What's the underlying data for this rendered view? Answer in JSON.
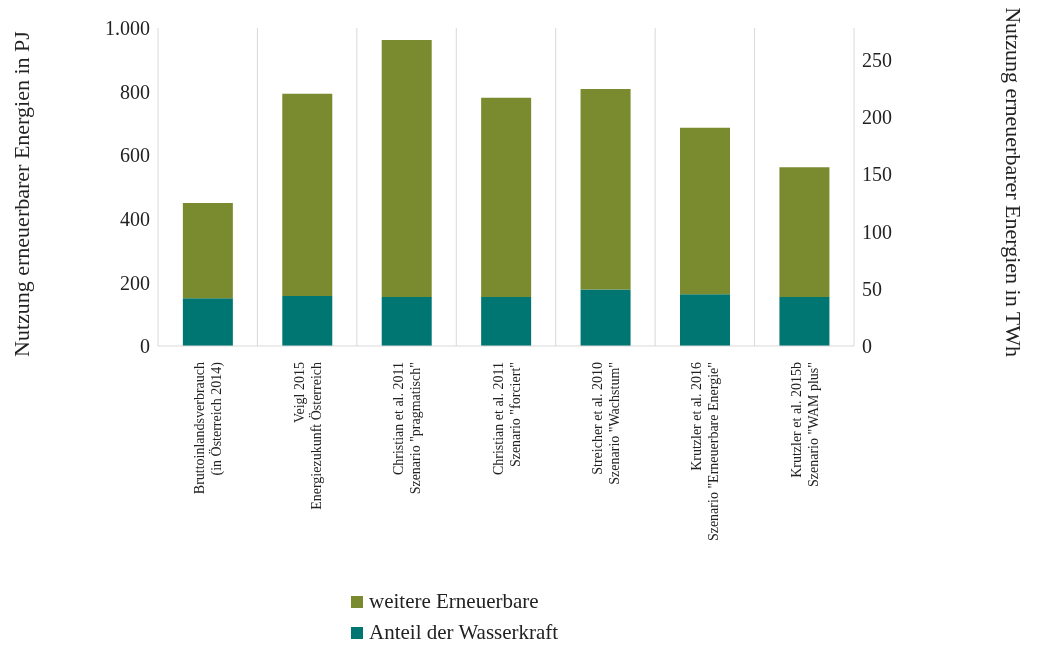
{
  "chart_data": {
    "type": "bar",
    "stacked": true,
    "categories": [
      "Bruttoinlandsverbrauch\n(in Österreich 2014)",
      "Veigl 2015\nEnergiezukunft Österreich",
      "Christian et al. 2011\nSzenario \"pragmatisch\"",
      "Christian et al. 2011\nSzenario \"forciert\"",
      "Streicher et al. 2010\nSzenario \"Wachstum\"",
      "Krutzler et al. 2016\nSzenario \"Erneuerbare Energie\"",
      "Krutzler et al. 2015b\nSzenario \"WAM plus\""
    ],
    "series": [
      {
        "name": "Anteil der Wasserkraft",
        "color": "#007672",
        "values": [
          150,
          157,
          154,
          154,
          178,
          163,
          154
        ]
      },
      {
        "name": "weitere Erneuerbare",
        "color": "#7a8a2e",
        "values": [
          300,
          636,
          808,
          627,
          630,
          523,
          408
        ]
      }
    ],
    "ylabel": "Nutzung erneuerbarer Energien in PJ",
    "y2label": "Nutzung erneuerbarer Energien in TWh",
    "ylim": [
      0,
      1000
    ],
    "yticks": [
      0,
      200,
      400,
      600,
      800,
      {
        "value": 1000,
        "label": "1.000"
      }
    ],
    "y2lim": [
      0,
      277.8
    ],
    "y2ticks": [
      0,
      50,
      100,
      150,
      200,
      250
    ],
    "grid": "x",
    "legend": "bottom"
  }
}
